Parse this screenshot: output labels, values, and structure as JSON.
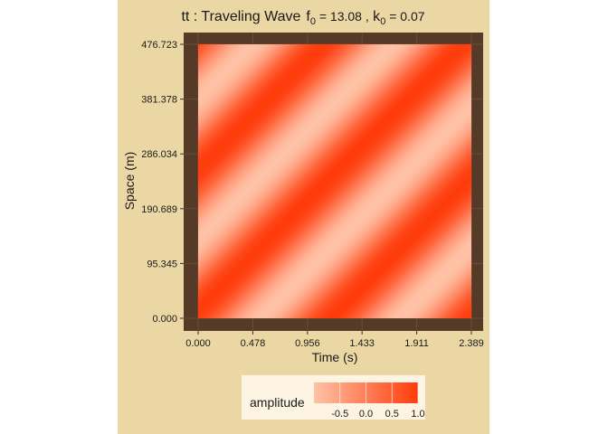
{
  "colors": {
    "background": "#ebd7a4",
    "frame": "#553a28",
    "grid": "#6b4d38",
    "low": "#ffc2a6",
    "mid": "#ff9a78",
    "high": "#ff3c0c",
    "legend_box": "#fdf4e3"
  },
  "title": {
    "prefix": "tt : Traveling Wave",
    "f_symbol": "f",
    "f_subscript": "0",
    "f_value": " = 13.08 ,",
    "k_symbol": " k",
    "k_subscript": "0",
    "k_value": " = 0.07"
  },
  "legend": {
    "title": "amplitude",
    "ticks": [
      "-0.5",
      "0.0",
      "0.5",
      "1.0"
    ]
  },
  "chart_data": {
    "type": "heatmap",
    "title": "tt : Traveling Wave  f0 = 13.08 , k0 = 0.07",
    "xlabel": "Time (s)",
    "ylabel": "Space (m)",
    "xlim": [
      0,
      2.389
    ],
    "ylim": [
      0,
      476.723
    ],
    "x_ticks": [
      "0.000",
      "0.478",
      "0.956",
      "1.433",
      "1.911",
      "2.389"
    ],
    "y_ticks": [
      "0.000",
      "95.345",
      "190.689",
      "286.034",
      "381.378",
      "476.723"
    ],
    "wave": {
      "f0": 13.08,
      "k0": 0.07
    },
    "value_range": [
      -1.0,
      1.0
    ],
    "fill_name": "amplitude",
    "legend_position": "bottom",
    "grid": true
  }
}
